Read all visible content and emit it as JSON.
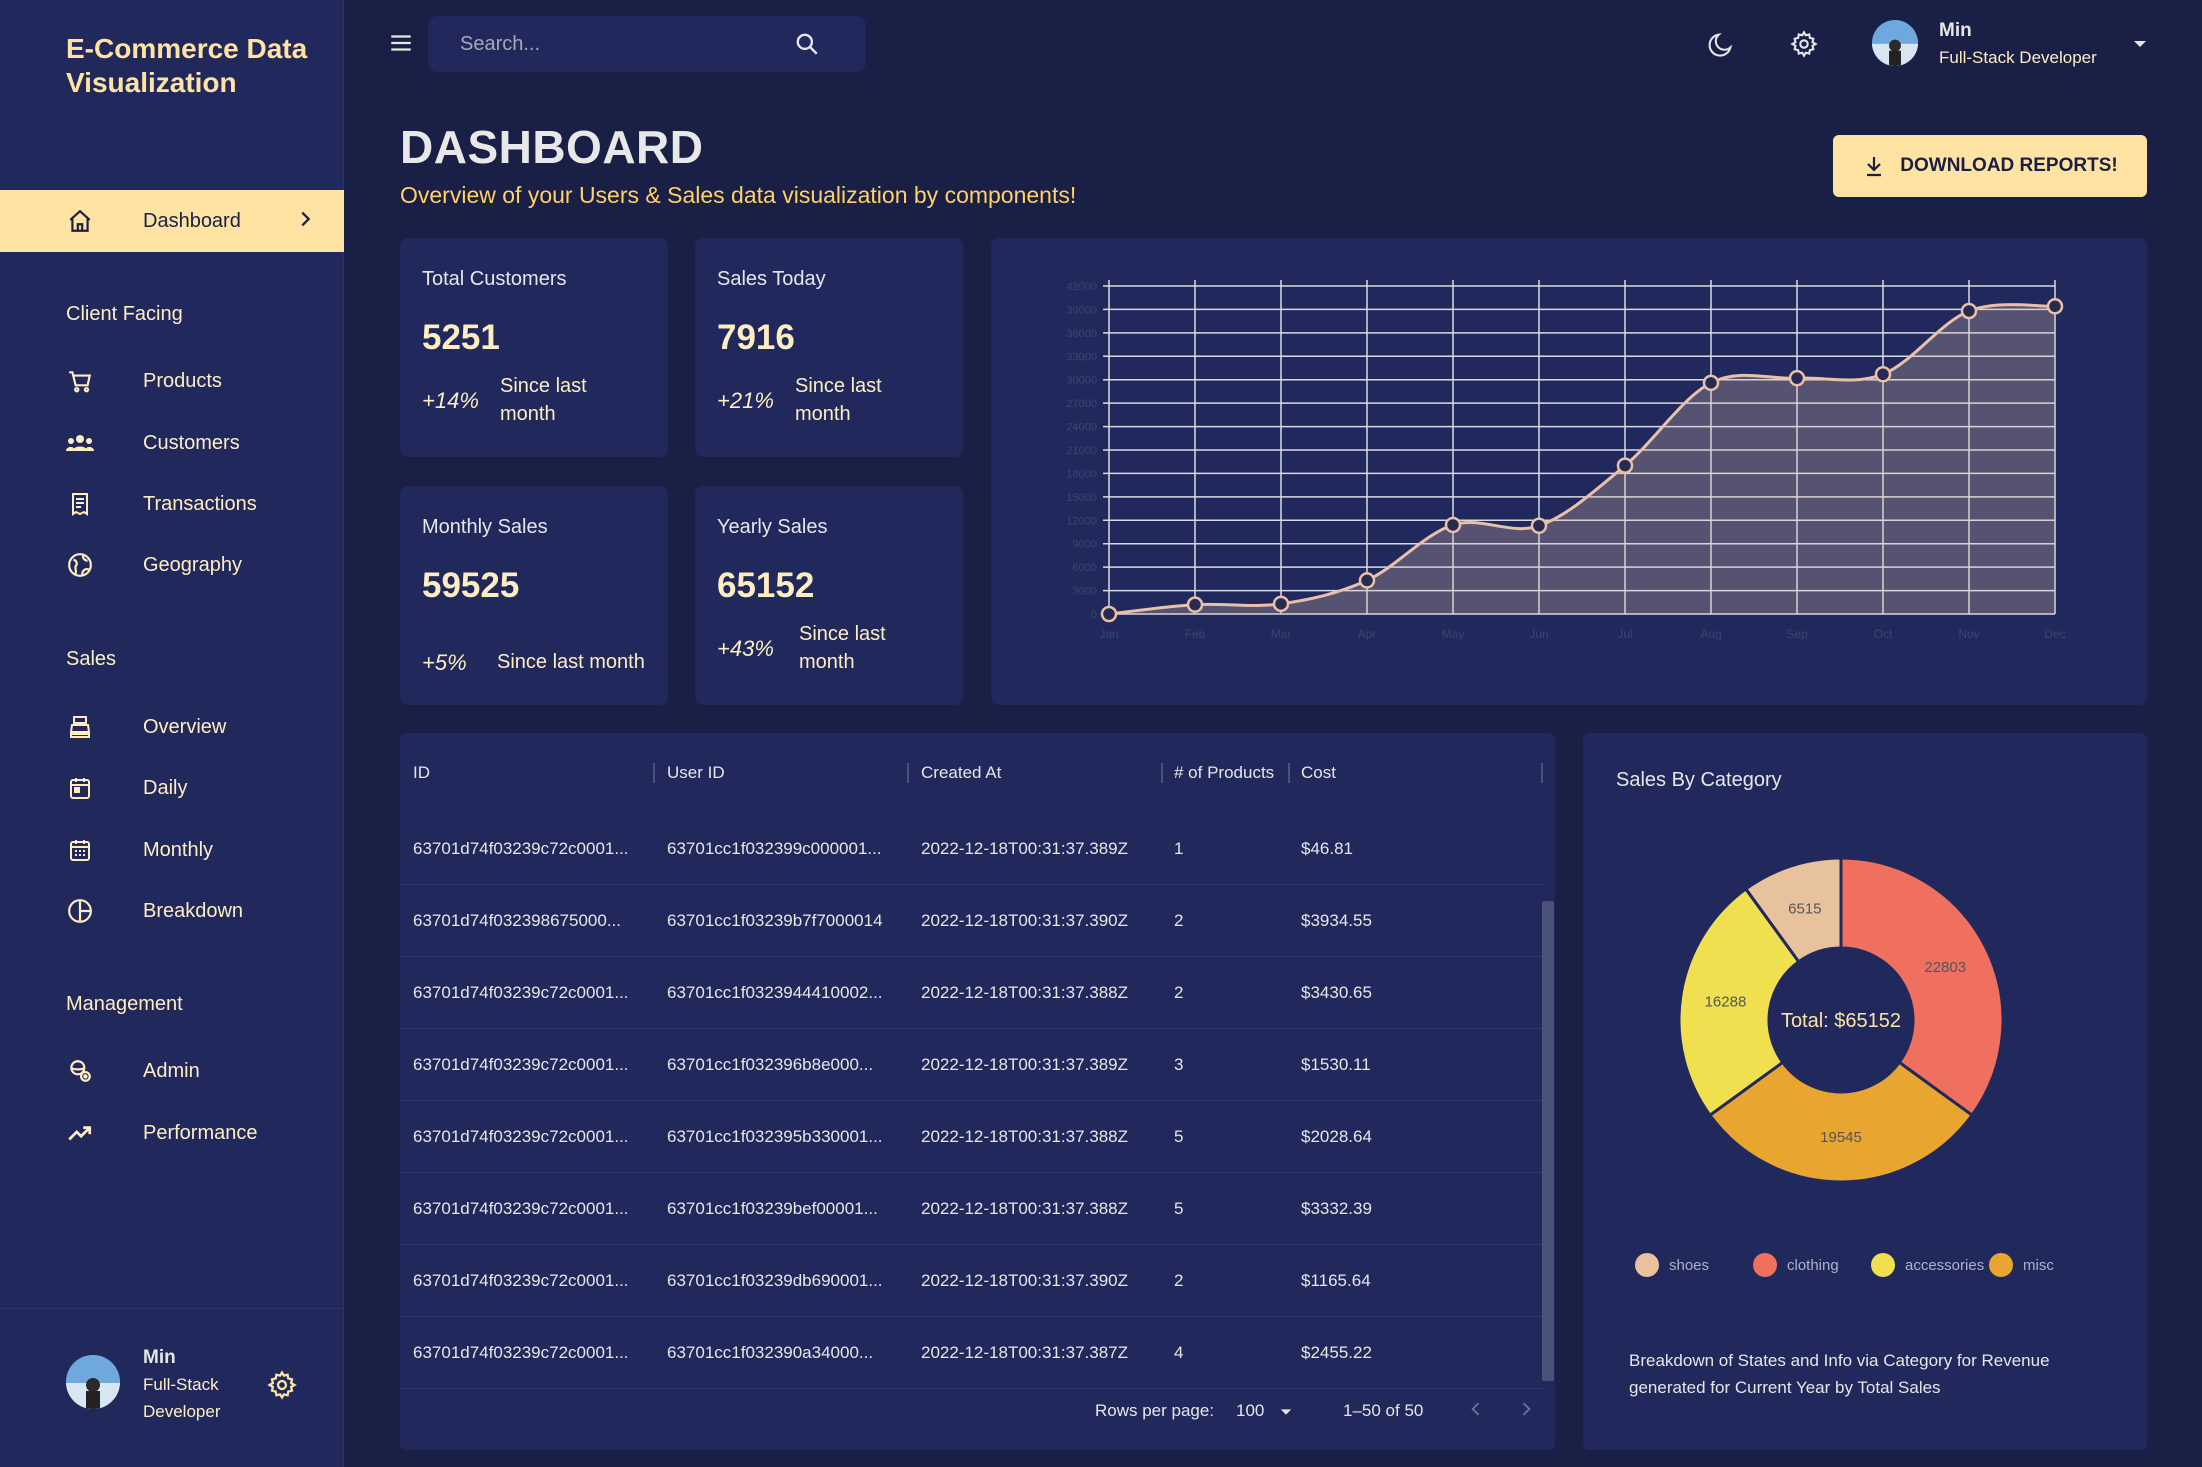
{
  "app": {
    "brand": "E-Commerce Data Visualization"
  },
  "sidebar": {
    "dashboard_label": "Dashboard",
    "sections": {
      "client": "Client Facing",
      "sales": "Sales",
      "management": "Management"
    },
    "items": {
      "products": "Products",
      "customers": "Customers",
      "transactions": "Transactions",
      "geography": "Geography",
      "overview": "Overview",
      "daily": "Daily",
      "monthly": "Monthly",
      "breakdown": "Breakdown",
      "admin": "Admin",
      "performance": "Performance"
    },
    "user": {
      "name": "Min",
      "role_line1": "Full-Stack",
      "role_line2": "Developer"
    }
  },
  "topbar": {
    "search_placeholder": "Search...",
    "user": {
      "name": "Min",
      "role": "Full-Stack Developer"
    }
  },
  "header": {
    "title": "DASHBOARD",
    "subtitle": "Overview of your Users & Sales data visualization by components!",
    "download_label": "DOWNLOAD REPORTS!"
  },
  "stats": [
    {
      "title": "Total Customers",
      "value": "5251",
      "increase": "+14%",
      "desc": "Since last month"
    },
    {
      "title": "Sales Today",
      "value": "7916",
      "increase": "+21%",
      "desc": "Since last month"
    },
    {
      "title": "Monthly Sales",
      "value": "59525",
      "increase": "+5%",
      "desc": "Since last month"
    },
    {
      "title": "Yearly Sales",
      "value": "65152",
      "increase": "+43%",
      "desc": "Since last month"
    }
  ],
  "table": {
    "columns": [
      "ID",
      "User ID",
      "Created At",
      "# of Products",
      "Cost"
    ],
    "rows": [
      [
        "63701d74f03239c72c0001...",
        "63701cc1f032399c000001...",
        "2022-12-18T00:31:37.389Z",
        "1",
        "$46.81"
      ],
      [
        "63701d74f032398675000...",
        "63701cc1f03239b7f7000014",
        "2022-12-18T00:31:37.390Z",
        "2",
        "$3934.55"
      ],
      [
        "63701d74f03239c72c0001...",
        "63701cc1f0323944410002...",
        "2022-12-18T00:31:37.388Z",
        "2",
        "$3430.65"
      ],
      [
        "63701d74f03239c72c0001...",
        "63701cc1f032396b8e000...",
        "2022-12-18T00:31:37.389Z",
        "3",
        "$1530.11"
      ],
      [
        "63701d74f03239c72c0001...",
        "63701cc1f032395b330001...",
        "2022-12-18T00:31:37.388Z",
        "5",
        "$2028.64"
      ],
      [
        "63701d74f03239c72c0001...",
        "63701cc1f03239bef00001...",
        "2022-12-18T00:31:37.388Z",
        "5",
        "$3332.39"
      ],
      [
        "63701d74f03239c72c0001...",
        "63701cc1f03239db690001...",
        "2022-12-18T00:31:37.390Z",
        "2",
        "$1165.64"
      ],
      [
        "63701d74f03239c72c0001...",
        "63701cc1f032390a34000...",
        "2022-12-18T00:31:37.387Z",
        "4",
        "$2455.22"
      ]
    ],
    "rows_per_page_label": "Rows per page:",
    "rows_per_page": "100",
    "range": "1–50 of 50"
  },
  "chart_data": [
    {
      "type": "area",
      "x": [
        "Jan",
        "Feb",
        "Mar",
        "Apr",
        "May",
        "Jun",
        "Jul",
        "Aug",
        "Sep",
        "Oct",
        "Nov",
        "Dec"
      ],
      "series": [
        {
          "values": [
            0,
            1200,
            1300,
            4300,
            11400,
            11300,
            19000,
            29600,
            30200,
            30700,
            38800,
            39400
          ]
        }
      ],
      "ylim": [
        0,
        42000
      ],
      "grid": true
    },
    {
      "type": "pie",
      "title": "Sales By Category",
      "center_label": "Total: $65152",
      "slices": [
        {
          "label": "shoes",
          "value": 6515,
          "color": "#e8c29d"
        },
        {
          "label": "clothing",
          "value": 22803,
          "color": "#f07060"
        },
        {
          "label": "misc",
          "value": 19545,
          "color": "#e8a530"
        },
        {
          "label": "accessories",
          "value": 16288,
          "color": "#f0e050"
        }
      ],
      "legend_order": [
        "shoes",
        "clothing",
        "accessories",
        "misc"
      ],
      "caption": "Breakdown of States and Info via Category for Revenue generated for Current Year by Total Sales"
    }
  ]
}
